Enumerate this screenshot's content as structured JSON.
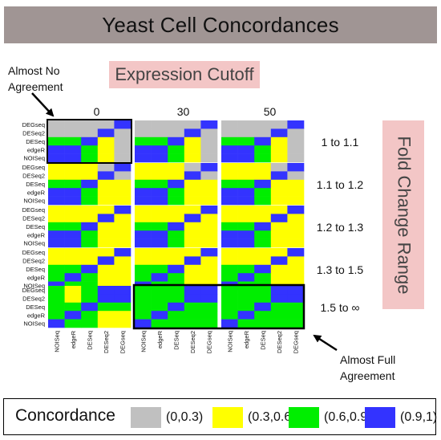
{
  "title": "Yeast Cell Concordances",
  "expression_cutoff_label": "Expression Cutoff",
  "fold_change_label": "Fold Change Range",
  "annotations": {
    "almost_no_agreement": "Almost No Agreement",
    "almost_full_agreement": "Almost Full Agreement"
  },
  "colors": {
    "g": "#c0c0c0",
    "y": "#ffff00",
    "n": "#00ee00",
    "b": "#3333ff"
  },
  "chart_data": {
    "type": "heatmap",
    "column_groups": [
      "0",
      "30",
      "50"
    ],
    "row_groups": [
      "1 to 1.1",
      "1.1 to 1.2",
      "1.2 to 1.3",
      "1.3 to 1.5",
      "1.5 to ∞"
    ],
    "row_methods": [
      "DEGseq",
      "DESeq2",
      "DESeq",
      "edgeR",
      "NOISeq"
    ],
    "col_methods": [
      "NOISeq",
      "edgeR",
      "DESeq",
      "DESeq2",
      "DEGseq"
    ],
    "legend": {
      "title": "Concordance",
      "items": [
        {
          "range": "(0,0.3)",
          "color": "g"
        },
        {
          "range": "(0.3,0.6)",
          "color": "y"
        },
        {
          "range": "(0.6,0.9)",
          "color": "n"
        },
        {
          "range": "(0.9,1)",
          "color": "b"
        }
      ]
    },
    "cells": [
      [
        [
          "ggggb",
          "gggbg",
          "nnbyg",
          "bbnyg",
          "bbnyg"
        ],
        [
          "ggggb",
          "gggbg",
          "nnbyg",
          "bbnyg",
          "bbnyg"
        ],
        [
          "ggggb",
          "gggbg",
          "nnbyg",
          "bbnyg",
          "bbnyg"
        ]
      ],
      [
        [
          "yyygb",
          "yyybg",
          "nnbyy",
          "bbnyy",
          "bbnyy"
        ],
        [
          "yyygb",
          "yyybg",
          "nnbyy",
          "bbnyy",
          "bbnyy"
        ],
        [
          "yyygb",
          "yyybg",
          "nnbyy",
          "bbnyy",
          "bbnyy"
        ]
      ],
      [
        [
          "yyyyb",
          "yyyby",
          "nnbyy",
          "bbnyy",
          "bbnyy"
        ],
        [
          "yyyyb",
          "yyyby",
          "nnbyy",
          "bbnyy",
          "bbnyy"
        ],
        [
          "yyyyb",
          "yyyby",
          "nnbyy",
          "bbnyy",
          "bbnyy"
        ]
      ],
      [
        [
          "yyyyb",
          "yyyby",
          "nnbyy",
          "nbnyy",
          "bnnyy"
        ],
        [
          "yyyyb",
          "yyyby",
          "nnbyy",
          "nbnyy",
          "bnnyy"
        ],
        [
          "yyyyb",
          "yyyby",
          "nnbyy",
          "nbnyy",
          "bnnyy"
        ]
      ],
      [
        [
          "nynbb",
          "nynbb",
          "nnbnn",
          "nbnyy",
          "bnnyy"
        ],
        [
          "nnnbb",
          "nnnbb",
          "nnbnn",
          "nbnnn",
          "bnnnn"
        ],
        [
          "nnnbb",
          "nnnbb",
          "nnbnn",
          "nbnnn",
          "bnnnn"
        ]
      ]
    ]
  }
}
